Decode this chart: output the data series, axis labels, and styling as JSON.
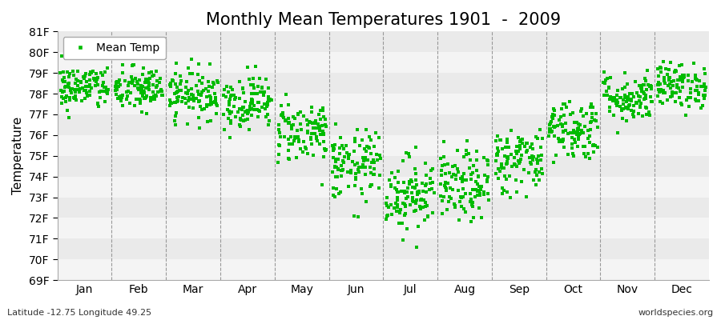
{
  "title": "Monthly Mean Temperatures 1901  -  2009",
  "ylabel": "Temperature",
  "xlabel_months": [
    "Jan",
    "Feb",
    "Mar",
    "Apr",
    "May",
    "Jun",
    "Jul",
    "Aug",
    "Sep",
    "Oct",
    "Nov",
    "Dec"
  ],
  "ylim": [
    69,
    81
  ],
  "yticks": [
    69,
    70,
    71,
    72,
    73,
    74,
    75,
    76,
    77,
    78,
    79,
    80,
    81
  ],
  "ytick_labels": [
    "69F",
    "70F",
    "71F",
    "72F",
    "73F",
    "74F",
    "75F",
    "76F",
    "77F",
    "78F",
    "79F",
    "80F",
    "81F"
  ],
  "mean_temps": [
    78.3,
    78.2,
    78.0,
    77.6,
    76.2,
    74.5,
    73.2,
    73.5,
    74.8,
    76.3,
    77.8,
    78.4
  ],
  "std_devs": [
    0.55,
    0.55,
    0.6,
    0.65,
    0.75,
    0.85,
    0.9,
    0.85,
    0.8,
    0.75,
    0.6,
    0.55
  ],
  "marker_color": "#00bb00",
  "marker_size": 2.8,
  "legend_label": "Mean Temp",
  "n_years": 109,
  "subtitle_lat": "Latitude -12.75 Longitude 49.25",
  "watermark": "worldspecies.org",
  "background_color": "#ffffff",
  "band_color_even": "#f4f4f4",
  "band_color_odd": "#eaeaea",
  "dashed_line_color": "#999999",
  "title_fontsize": 15,
  "axis_fontsize": 11,
  "tick_fontsize": 10,
  "seed": 42
}
